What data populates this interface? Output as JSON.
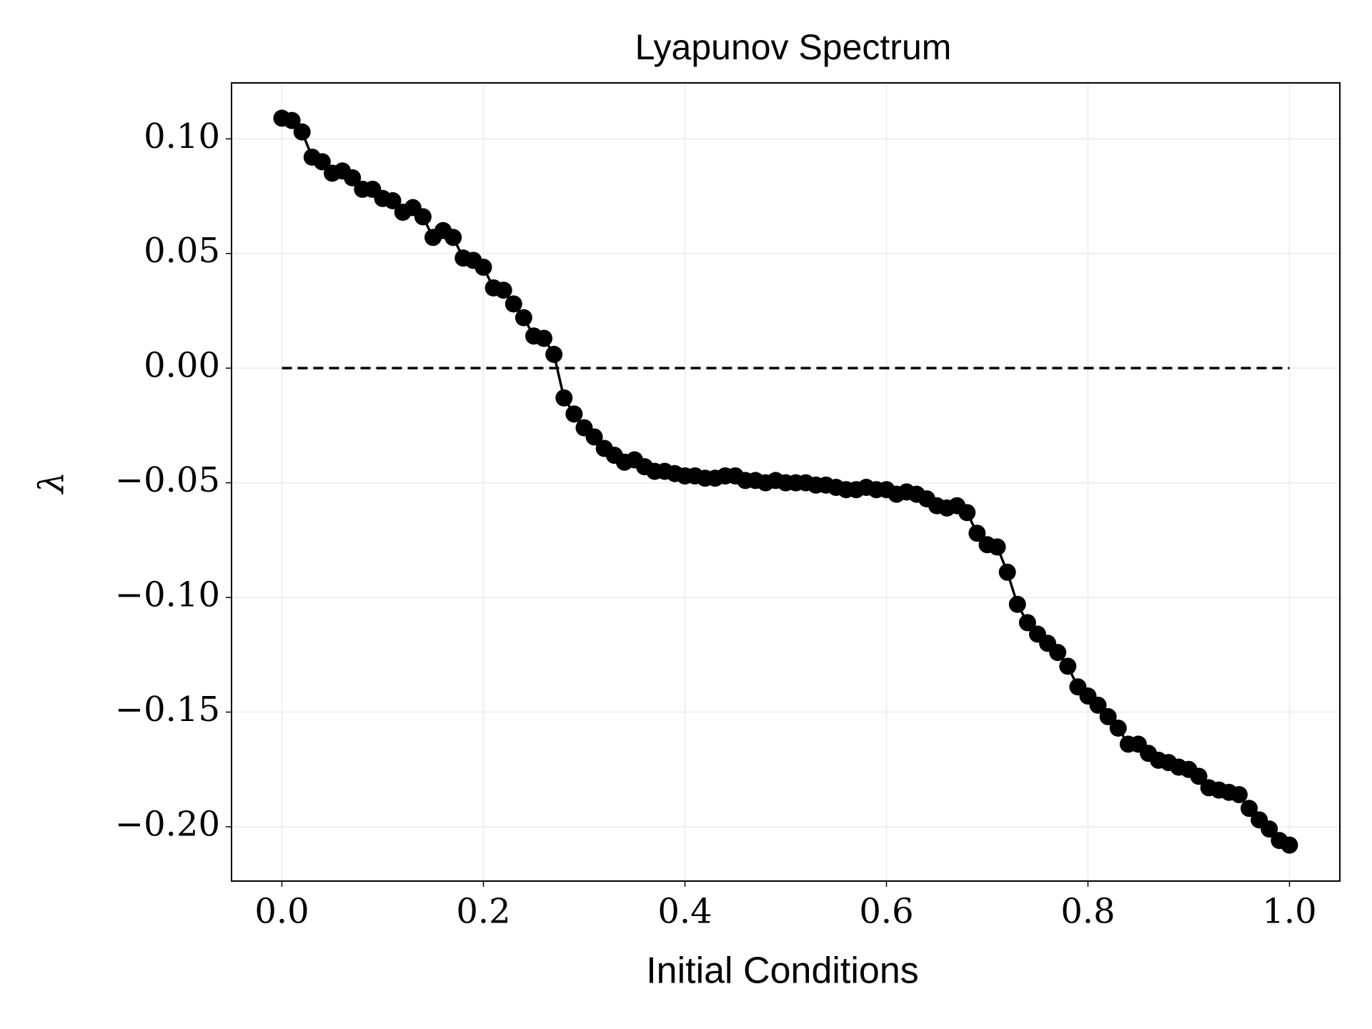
{
  "chart_data": {
    "type": "line",
    "title": "Lyapunov Spectrum",
    "x_label": "Initial Conditions",
    "y_label": "λ",
    "x": [
      0,
      0.01,
      0.02,
      0.03,
      0.04,
      0.05,
      0.06,
      0.07,
      0.08,
      0.09,
      0.1,
      0.11,
      0.12,
      0.13,
      0.14,
      0.15,
      0.16,
      0.17,
      0.18,
      0.19,
      0.2,
      0.21,
      0.22,
      0.23,
      0.24,
      0.25,
      0.26,
      0.27,
      0.28,
      0.29,
      0.3,
      0.31,
      0.32,
      0.33,
      0.34,
      0.35,
      0.36,
      0.37,
      0.38,
      0.39,
      0.4,
      0.41,
      0.42,
      0.43,
      0.44,
      0.45,
      0.46,
      0.47,
      0.48,
      0.49,
      0.5,
      0.51,
      0.52,
      0.53,
      0.54,
      0.55,
      0.56,
      0.57,
      0.58,
      0.59,
      0.6,
      0.61,
      0.62,
      0.63,
      0.64,
      0.65,
      0.66,
      0.67,
      0.68,
      0.69,
      0.7,
      0.71,
      0.72,
      0.73,
      0.74,
      0.75,
      0.76,
      0.77,
      0.78,
      0.79,
      0.8,
      0.81,
      0.82,
      0.83,
      0.84,
      0.85,
      0.86,
      0.87,
      0.88,
      0.89,
      0.9,
      0.91,
      0.92,
      0.93,
      0.94,
      0.95,
      0.96,
      0.97,
      0.98,
      0.99,
      1
    ],
    "series": [
      {
        "color": "#000000",
        "values": [
          0.109,
          0.108,
          0.103,
          0.092,
          0.09,
          0.085,
          0.086,
          0.083,
          0.078,
          0.078,
          0.074,
          0.073,
          0.068,
          0.07,
          0.066,
          0.057,
          0.06,
          0.057,
          0.048,
          0.047,
          0.044,
          0.035,
          0.034,
          0.028,
          0.022,
          0.014,
          0.013,
          0.006,
          -0.013,
          -0.02,
          -0.026,
          -0.03,
          -0.035,
          -0.038,
          -0.041,
          -0.04,
          -0.043,
          -0.045,
          -0.045,
          -0.046,
          -0.047,
          -0.047,
          -0.048,
          -0.048,
          -0.047,
          -0.047,
          -0.049,
          -0.049,
          -0.05,
          -0.049,
          -0.05,
          -0.05,
          -0.05,
          -0.051,
          -0.051,
          -0.052,
          -0.053,
          -0.053,
          -0.052,
          -0.053,
          -0.053,
          -0.055,
          -0.054,
          -0.055,
          -0.057,
          -0.06,
          -0.061,
          -0.06,
          -0.063,
          -0.072,
          -0.077,
          -0.078,
          -0.089,
          -0.103,
          -0.111,
          -0.116,
          -0.12,
          -0.124,
          -0.13,
          -0.139,
          -0.143,
          -0.147,
          -0.152,
          -0.157,
          -0.164,
          -0.164,
          -0.168,
          -0.171,
          -0.172,
          -0.174,
          -0.175,
          -0.178,
          -0.183,
          -0.184,
          -0.185,
          -0.186,
          -0.192,
          -0.197,
          -0.201,
          -0.206,
          -0.208
        ]
      }
    ],
    "hline": 0,
    "xlim": [
      -0.05,
      1.05
    ],
    "ylim": [
      -0.2237,
      0.1244
    ],
    "xticks": [
      {
        "value": 0,
        "label": "0.0"
      },
      0.2,
      0.4,
      0.6,
      0.8,
      {
        "value": 1,
        "label": "1.0"
      }
    ],
    "yticks": [
      {
        "value": -0.2,
        "label": "−0.20"
      },
      {
        "value": -0.15,
        "label": "−0.15"
      },
      {
        "value": -0.1,
        "label": "−0.10"
      },
      {
        "value": -0.05,
        "label": "−0.05"
      },
      {
        "value": 0,
        "label": "0.00"
      },
      0.05,
      {
        "value": 0.1,
        "label": "0.10"
      }
    ],
    "grid": true
  }
}
